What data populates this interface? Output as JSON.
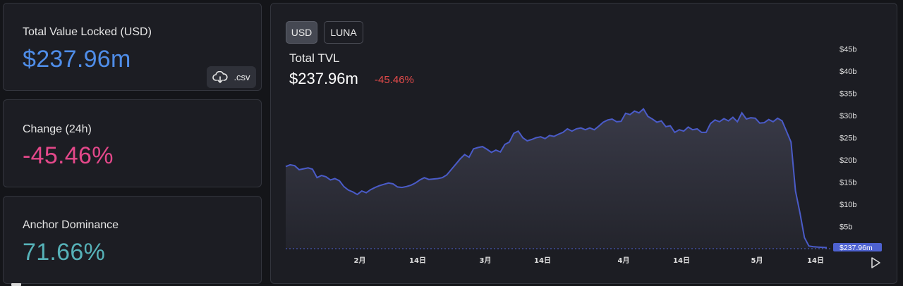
{
  "stats": {
    "tvl": {
      "label": "Total Value Locked (USD)",
      "value": "$237.96m",
      "color": "#4f8de8"
    },
    "change": {
      "label": "Change (24h)",
      "value": "-45.46%",
      "color": "#e4488a"
    },
    "dominance": {
      "label": "Anchor Dominance",
      "value": "71.66%",
      "color": "#56b2b8"
    }
  },
  "csv": {
    "label": ".csv",
    "icon": "cloud-download-icon"
  },
  "toggles": {
    "usd": "USD",
    "luna": "LUNA",
    "active": "usd"
  },
  "chart_data": {
    "type": "area",
    "title": "Total TVL",
    "total": "$237.96m",
    "change": "-45.46%",
    "x_ticks": [
      "2月",
      "14日",
      "3月",
      "14日",
      "4月",
      "14日",
      "5月",
      "14日"
    ],
    "y_ticks": [
      "$5b",
      "$10b",
      "$15b",
      "$20b",
      "$25b",
      "$30b",
      "$35b",
      "$40b",
      "$45b"
    ],
    "ylim": [
      0,
      45
    ],
    "y_unit": "b",
    "current_label": "$237.96m",
    "values": [
      18.5,
      18.9,
      18.7,
      17.8,
      18.0,
      18.2,
      17.9,
      16.0,
      16.5,
      16.2,
      15.5,
      15.8,
      15.3,
      14.0,
      13.2,
      12.8,
      12.2,
      13.0,
      12.6,
      13.3,
      13.8,
      14.2,
      14.5,
      14.8,
      14.6,
      13.9,
      13.8,
      14.0,
      14.3,
      14.8,
      15.5,
      16.0,
      15.6,
      15.7,
      15.8,
      16.0,
      16.6,
      17.8,
      19.0,
      20.2,
      21.2,
      20.6,
      22.5,
      22.8,
      23.0,
      22.4,
      21.7,
      22.2,
      21.8,
      23.5,
      24.0,
      26.0,
      26.5,
      25.0,
      24.3,
      24.6,
      25.0,
      25.2,
      24.8,
      25.5,
      25.3,
      25.8,
      26.2,
      27.0,
      26.5,
      27.0,
      27.2,
      26.8,
      27.2,
      26.8,
      27.6,
      28.5,
      29.0,
      29.2,
      28.6,
      28.7,
      30.5,
      30.2,
      31.0,
      30.6,
      31.5,
      29.8,
      29.2,
      28.5,
      28.8,
      27.5,
      27.7,
      26.2,
      26.8,
      26.5,
      27.4,
      26.8,
      27.0,
      26.2,
      26.2,
      28.2,
      29.0,
      28.6,
      29.3,
      28.8,
      29.6,
      28.6,
      30.6,
      29.2,
      29.5,
      29.4,
      28.3,
      28.4,
      29.1,
      28.6,
      29.4,
      28.8,
      26.4,
      24.0,
      13.0,
      8.0,
      2.5,
      0.6,
      0.45,
      0.35,
      0.3,
      0.24
    ],
    "colors": {
      "line": "#4a5bc8",
      "fill": "#3a3b48",
      "baseline": "#5064d6"
    }
  }
}
